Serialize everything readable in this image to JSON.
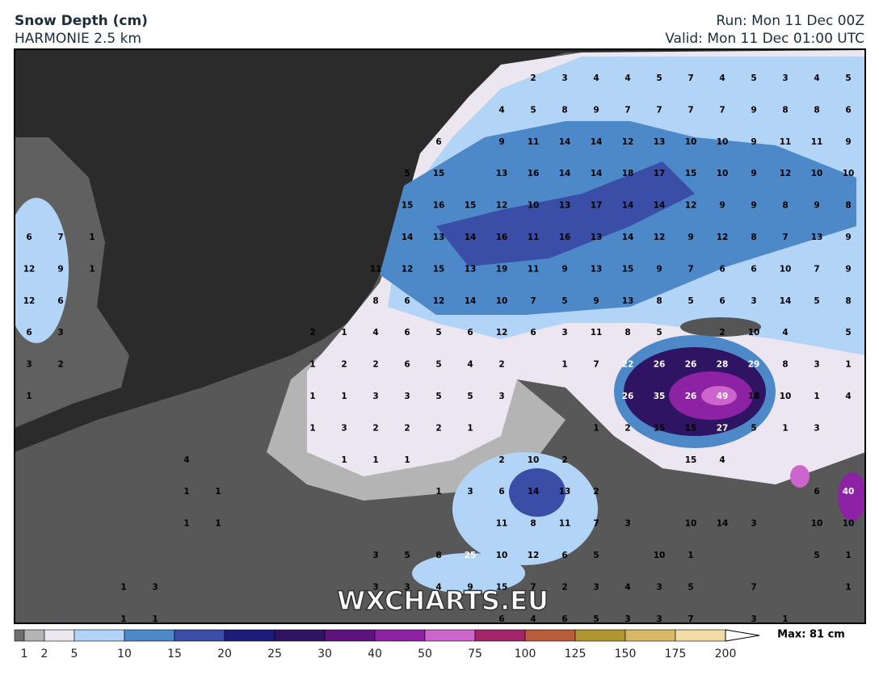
{
  "header": {
    "title": "Snow Depth (cm)",
    "model": "HARMONIE 2.5 km",
    "run": "Run: Mon 11 Dec 00Z",
    "valid": "Valid: Mon 11 Dec 01:00 UTC"
  },
  "watermark": "WXCHARTS.EU",
  "grid_labels": [
    [
      null,
      null,
      null,
      null,
      null,
      null,
      null,
      null,
      null,
      null,
      null,
      null,
      null,
      null,
      null,
      null,
      2,
      3,
      4,
      4,
      5,
      7,
      4,
      5,
      3,
      4,
      5
    ],
    [
      null,
      null,
      null,
      null,
      null,
      null,
      null,
      null,
      null,
      null,
      null,
      null,
      null,
      null,
      null,
      4,
      5,
      8,
      9,
      7,
      7,
      7,
      7,
      9,
      8,
      8,
      6
    ],
    [
      null,
      null,
      null,
      null,
      null,
      null,
      null,
      null,
      null,
      null,
      null,
      null,
      null,
      6,
      null,
      9,
      11,
      14,
      14,
      12,
      13,
      10,
      10,
      9,
      11,
      11,
      9
    ],
    [
      null,
      null,
      null,
      null,
      null,
      null,
      null,
      null,
      null,
      null,
      null,
      null,
      5,
      15,
      null,
      13,
      16,
      14,
      14,
      18,
      17,
      15,
      10,
      9,
      12,
      10,
      10
    ],
    [
      null,
      null,
      null,
      null,
      null,
      null,
      null,
      null,
      null,
      null,
      null,
      null,
      15,
      16,
      15,
      12,
      10,
      13,
      17,
      14,
      14,
      12,
      9,
      9,
      8,
      9,
      8
    ],
    [
      6,
      7,
      1,
      null,
      null,
      null,
      null,
      null,
      null,
      null,
      null,
      null,
      14,
      13,
      14,
      16,
      11,
      16,
      13,
      14,
      12,
      9,
      12,
      8,
      7,
      13,
      9
    ],
    [
      12,
      9,
      1,
      null,
      null,
      null,
      null,
      null,
      null,
      null,
      null,
      11,
      12,
      15,
      13,
      19,
      11,
      9,
      13,
      15,
      9,
      7,
      6,
      6,
      10,
      7,
      9
    ],
    [
      12,
      6,
      null,
      null,
      null,
      null,
      null,
      null,
      null,
      null,
      null,
      8,
      6,
      12,
      14,
      10,
      7,
      5,
      9,
      13,
      8,
      5,
      6,
      3,
      14,
      5,
      8
    ],
    [
      6,
      3,
      null,
      null,
      null,
      null,
      null,
      null,
      null,
      2,
      1,
      4,
      6,
      5,
      6,
      12,
      6,
      3,
      11,
      8,
      5,
      null,
      2,
      10,
      4,
      null,
      5
    ],
    [
      3,
      2,
      null,
      null,
      null,
      null,
      null,
      null,
      null,
      1,
      2,
      2,
      6,
      5,
      4,
      2,
      null,
      1,
      7,
      22,
      26,
      26,
      28,
      29,
      8,
      3,
      1
    ],
    [
      1,
      null,
      null,
      null,
      null,
      null,
      null,
      null,
      null,
      1,
      1,
      3,
      3,
      5,
      5,
      3,
      null,
      null,
      null,
      26,
      35,
      26,
      49,
      18,
      10,
      1,
      4
    ],
    [
      null,
      null,
      null,
      null,
      null,
      null,
      null,
      null,
      null,
      1,
      3,
      2,
      2,
      2,
      1,
      null,
      null,
      null,
      1,
      2,
      15,
      15,
      27,
      5,
      1,
      3,
      null
    ],
    [
      null,
      null,
      null,
      null,
      null,
      4,
      null,
      null,
      null,
      null,
      1,
      1,
      1,
      null,
      null,
      2,
      10,
      2,
      null,
      null,
      null,
      15,
      4,
      null,
      null,
      null,
      null
    ],
    [
      null,
      null,
      null,
      null,
      null,
      1,
      1,
      null,
      null,
      null,
      null,
      null,
      null,
      1,
      3,
      6,
      14,
      13,
      2,
      null,
      null,
      null,
      null,
      null,
      null,
      6,
      40
    ],
    [
      null,
      null,
      null,
      null,
      null,
      1,
      1,
      null,
      null,
      null,
      null,
      null,
      null,
      null,
      null,
      11,
      8,
      11,
      7,
      3,
      null,
      10,
      14,
      3,
      null,
      10,
      10
    ],
    [
      null,
      null,
      null,
      null,
      null,
      null,
      null,
      null,
      null,
      null,
      null,
      3,
      5,
      8,
      25,
      10,
      12,
      6,
      5,
      null,
      10,
      1,
      null,
      null,
      null,
      5,
      1
    ],
    [
      null,
      null,
      null,
      1,
      3,
      null,
      null,
      null,
      null,
      null,
      null,
      3,
      3,
      4,
      9,
      15,
      7,
      2,
      3,
      4,
      3,
      5,
      null,
      7,
      null,
      null,
      1
    ],
    [
      null,
      null,
      null,
      1,
      1,
      null,
      null,
      null,
      null,
      null,
      null,
      null,
      null,
      null,
      null,
      6,
      4,
      6,
      5,
      3,
      3,
      7,
      null,
      3,
      1,
      null,
      null
    ]
  ],
  "colorbar": {
    "levels": [
      1,
      2,
      5,
      10,
      15,
      20,
      25,
      30,
      40,
      50,
      75,
      100,
      125,
      150,
      175,
      200
    ],
    "colors": [
      "#6e6e6e",
      "#b4b4b4",
      "#ece6f0",
      "#b2d4f6",
      "#4d88c8",
      "#3a4ea8",
      "#1c1c7a",
      "#2e1462",
      "#5e127c",
      "#8e22a4",
      "#cc66cc",
      "#a4246a",
      "#b85c3c",
      "#b09630",
      "#d8b866",
      "#f2dca6"
    ],
    "max": "Max: 81 cm"
  }
}
